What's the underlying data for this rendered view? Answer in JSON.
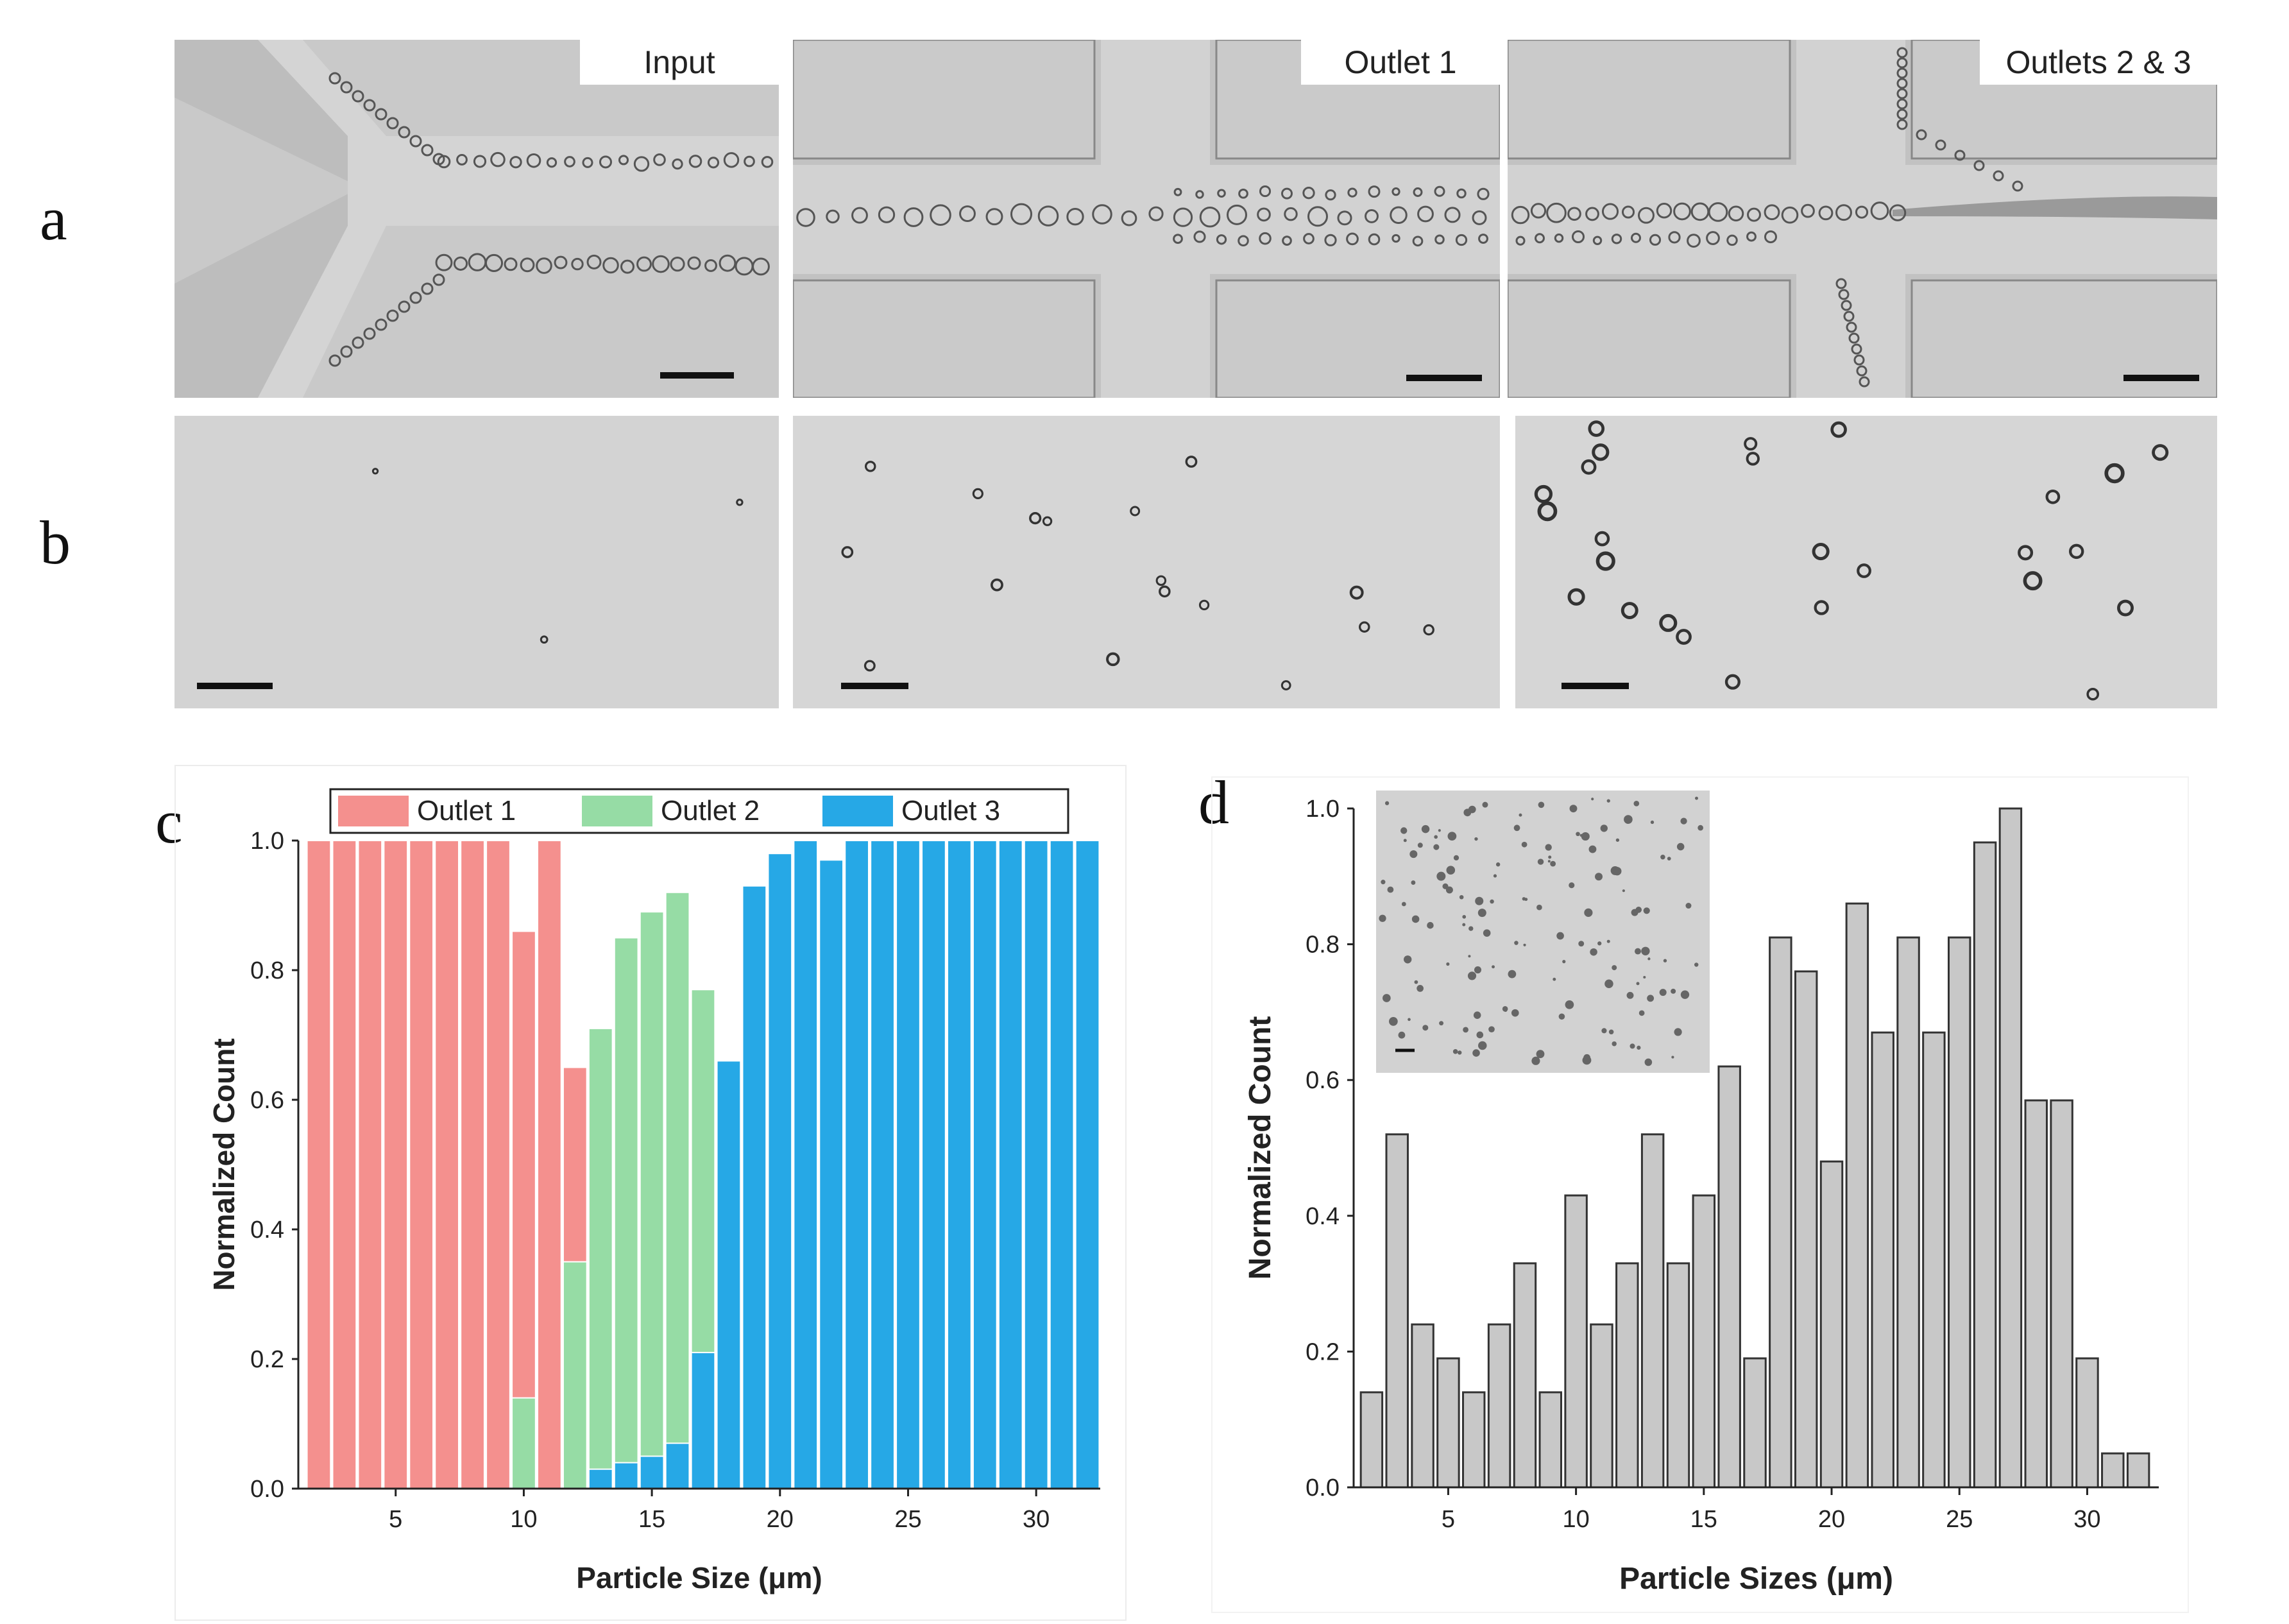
{
  "figure": {
    "row_labels": [
      "a",
      "b"
    ],
    "panel_labels": [
      "c",
      "d"
    ],
    "micrographs": {
      "row_a": [
        {
          "caption": "Input"
        },
        {
          "caption": "Outlet 1"
        },
        {
          "caption": "Outlets 2 & 3"
        }
      ]
    }
  },
  "charts": {
    "c": {
      "legend": [
        "Outlet 1",
        "Outlet 2",
        "Outlet 3"
      ],
      "colors": {
        "outlet1": "#f4908e",
        "outlet2": "#96dca5",
        "outlet3": "#26a8e6"
      },
      "xlabel": "Particle Size (μm)",
      "ylabel": "Normalized Count",
      "xticks": [
        "5",
        "10",
        "15",
        "20",
        "25",
        "30"
      ],
      "yticks": [
        "0.0",
        "0.2",
        "0.4",
        "0.6",
        "0.8",
        "1.0"
      ]
    },
    "d": {
      "xlabel": "Particle Sizes (μm)",
      "ylabel": "Normalized Count",
      "xticks": [
        "5",
        "10",
        "15",
        "20",
        "25",
        "30"
      ],
      "yticks": [
        "0.0",
        "0.2",
        "0.4",
        "0.6",
        "0.8",
        "1.0"
      ],
      "bar_color": "#c8c8c8"
    }
  },
  "chart_data": [
    {
      "type": "bar",
      "panel": "c",
      "xlabel": "Particle Size (μm)",
      "ylabel": "Normalized Count",
      "xlim": [
        1.2,
        32.5
      ],
      "ylim": [
        0,
        1
      ],
      "series": [
        {
          "name": "Outlet 1",
          "x": [
            2,
            3,
            4,
            5,
            6,
            7,
            8,
            9,
            10,
            11,
            12
          ],
          "values": [
            1.0,
            1.0,
            1.0,
            1.0,
            1.0,
            1.0,
            1.0,
            1.0,
            0.86,
            1.0,
            0.65
          ]
        },
        {
          "name": "Outlet 2",
          "x": [
            10,
            12,
            13,
            14,
            15,
            16,
            17
          ],
          "values": [
            0.14,
            0.35,
            0.71,
            0.85,
            0.89,
            0.92,
            0.77
          ]
        },
        {
          "name": "Outlet 3",
          "x": [
            13,
            14,
            15,
            16,
            17,
            18,
            19,
            20,
            21,
            22,
            23,
            24,
            25,
            26,
            27,
            28,
            29,
            30,
            31,
            32
          ],
          "values": [
            0.03,
            0.04,
            0.05,
            0.07,
            0.21,
            0.66,
            0.93,
            0.98,
            1.0,
            0.97,
            1.0,
            1.0,
            1.0,
            1.0,
            1.0,
            1.0,
            1.0,
            1.0,
            1.0,
            1.0
          ]
        }
      ]
    },
    {
      "type": "bar",
      "panel": "d",
      "xlabel": "Particle Sizes (μm)",
      "ylabel": "Normalized Count",
      "xlim": [
        1.3,
        32.8
      ],
      "ylim": [
        0,
        1
      ],
      "x": [
        2,
        3,
        4,
        5,
        6,
        7,
        8,
        9,
        10,
        11,
        12,
        13,
        14,
        15,
        16,
        17,
        18,
        19,
        20,
        21,
        22,
        23,
        24,
        25,
        26,
        27,
        28,
        29,
        30,
        31,
        32
      ],
      "values": [
        0.14,
        0.52,
        0.24,
        0.19,
        0.14,
        0.24,
        0.33,
        0.14,
        0.43,
        0.24,
        0.33,
        0.52,
        0.33,
        0.43,
        0.62,
        0.19,
        0.81,
        0.76,
        0.48,
        0.86,
        0.67,
        0.81,
        0.67,
        0.81,
        0.95,
        1.0,
        0.57,
        0.57,
        0.19,
        0.05,
        0.05
      ]
    }
  ]
}
